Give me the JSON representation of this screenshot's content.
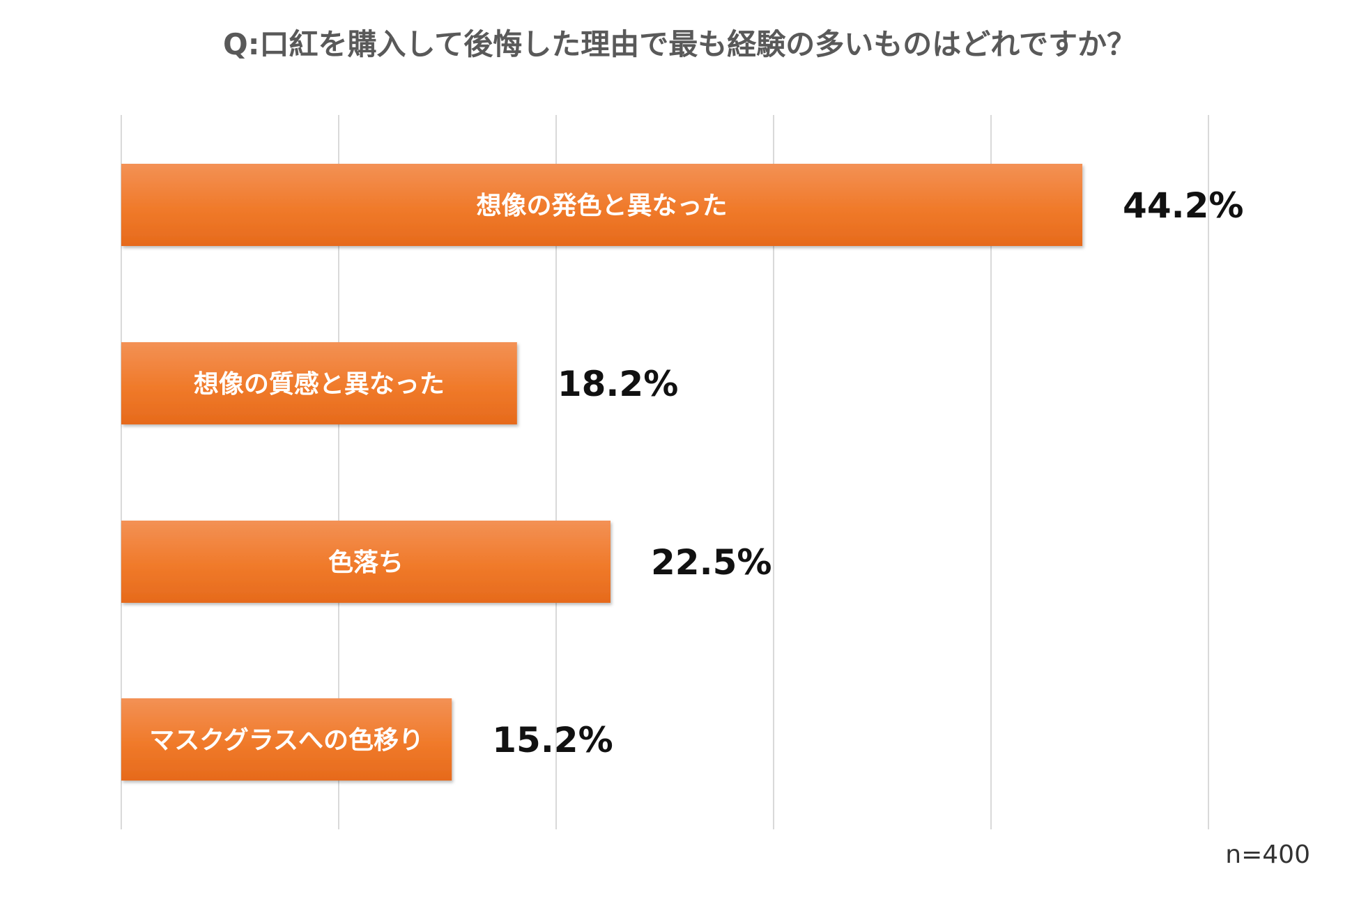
{
  "chart_data": {
    "type": "bar",
    "orientation": "horizontal",
    "title": "Q:口紅を購入して後悔した理由で最も経験の多いものはどれですか？",
    "categories": [
      "想像の発色と異なった",
      "想像の質感と異なった",
      "色落ち",
      "マスクグラスへの色移り"
    ],
    "values": [
      44.2,
      18.2,
      22.5,
      15.2
    ],
    "value_labels": [
      "44.2%",
      "18.2%",
      "22.5%",
      "15.2%"
    ],
    "xlim": [
      0,
      50
    ],
    "grid": true,
    "legend": "none",
    "note": "n=400",
    "bar_color": "#F07A2A",
    "bar_color_light": "#F39155",
    "bar_color_dark": "#E66A1C"
  }
}
